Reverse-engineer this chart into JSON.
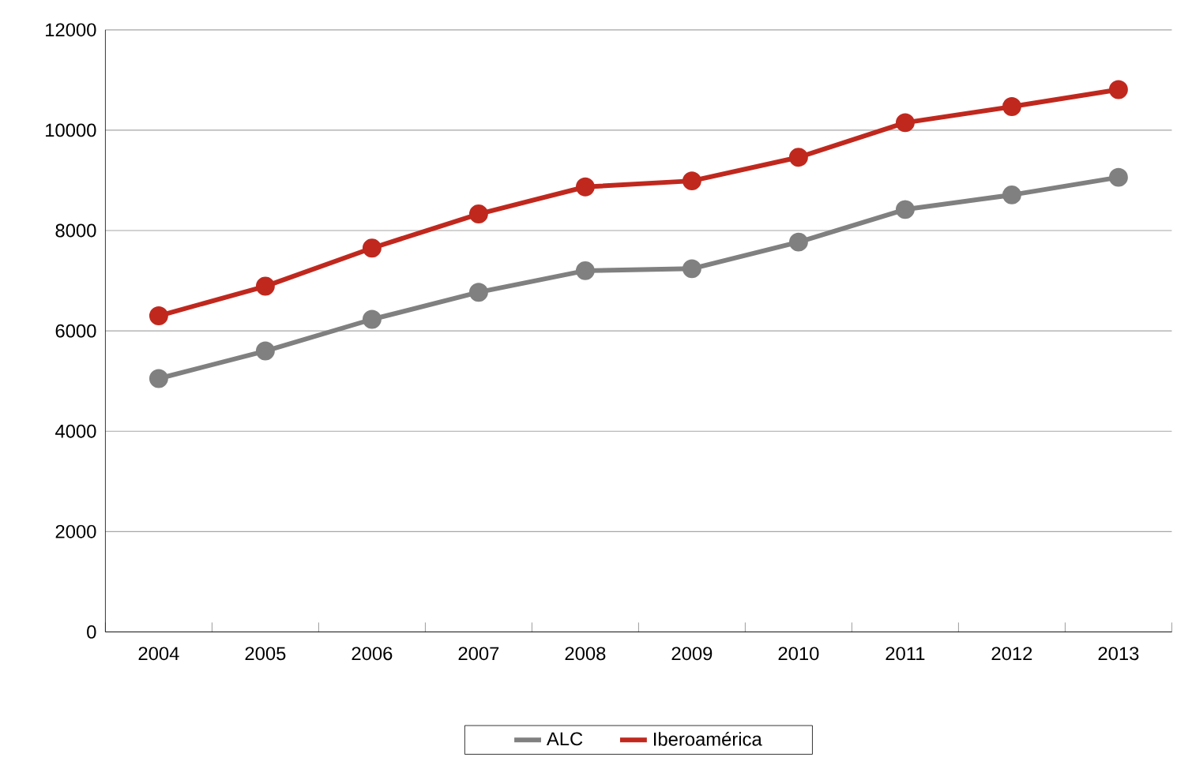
{
  "chart_data": {
    "type": "line",
    "categories": [
      "2004",
      "2005",
      "2006",
      "2007",
      "2008",
      "2009",
      "2010",
      "2011",
      "2012",
      "2013"
    ],
    "series": [
      {
        "name": "ALC",
        "color": "#808080",
        "values": [
          5050,
          5600,
          6230,
          6770,
          7200,
          7240,
          7770,
          8420,
          8710,
          9060
        ]
      },
      {
        "name": "Iberoamérica",
        "color": "#c0281e",
        "values": [
          6300,
          6890,
          7650,
          8330,
          8870,
          8990,
          9460,
          10150,
          10470,
          10810
        ]
      }
    ],
    "ylim": [
      0,
      12000
    ],
    "yticks": [
      0,
      2000,
      4000,
      6000,
      8000,
      10000,
      12000
    ],
    "grid": "y",
    "legend": "bottom",
    "marker": "circle",
    "line_style": "solid"
  }
}
